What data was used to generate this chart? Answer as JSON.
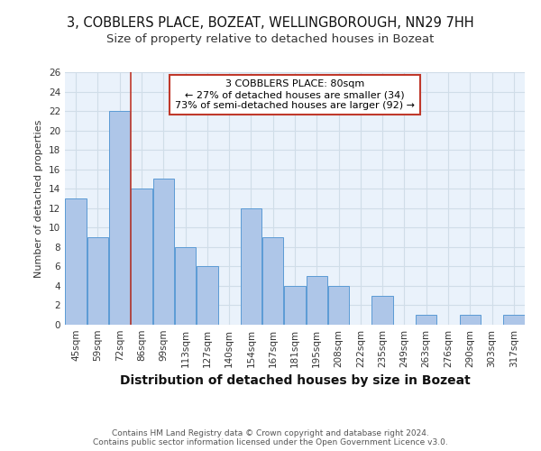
{
  "title": "3, COBBLERS PLACE, BOZEAT, WELLINGBOROUGH, NN29 7HH",
  "subtitle": "Size of property relative to detached houses in Bozeat",
  "xlabel": "Distribution of detached houses by size in Bozeat",
  "ylabel": "Number of detached properties",
  "categories": [
    "45sqm",
    "59sqm",
    "72sqm",
    "86sqm",
    "99sqm",
    "113sqm",
    "127sqm",
    "140sqm",
    "154sqm",
    "167sqm",
    "181sqm",
    "195sqm",
    "208sqm",
    "222sqm",
    "235sqm",
    "249sqm",
    "263sqm",
    "276sqm",
    "290sqm",
    "303sqm",
    "317sqm"
  ],
  "values": [
    13,
    9,
    22,
    14,
    15,
    8,
    6,
    0,
    12,
    9,
    4,
    5,
    4,
    0,
    3,
    0,
    1,
    0,
    1,
    0,
    1
  ],
  "bar_color": "#aec6e8",
  "bar_edge_color": "#5b9bd5",
  "vline_x": 2.5,
  "vline_color": "#c0392b",
  "annotation_text": "3 COBBLERS PLACE: 80sqm\n← 27% of detached houses are smaller (34)\n73% of semi-detached houses are larger (92) →",
  "annotation_box_color": "#ffffff",
  "annotation_box_edgecolor": "#c0392b",
  "ylim": [
    0,
    26
  ],
  "yticks": [
    0,
    2,
    4,
    6,
    8,
    10,
    12,
    14,
    16,
    18,
    20,
    22,
    24,
    26
  ],
  "grid_color": "#d0dde8",
  "bg_color": "#eaf2fb",
  "footer": "Contains HM Land Registry data © Crown copyright and database right 2024.\nContains public sector information licensed under the Open Government Licence v3.0.",
  "title_fontsize": 10.5,
  "subtitle_fontsize": 9.5,
  "annotation_fontsize": 8,
  "ylabel_fontsize": 8,
  "xlabel_fontsize": 10,
  "tick_fontsize": 7.5,
  "footer_fontsize": 6.5
}
